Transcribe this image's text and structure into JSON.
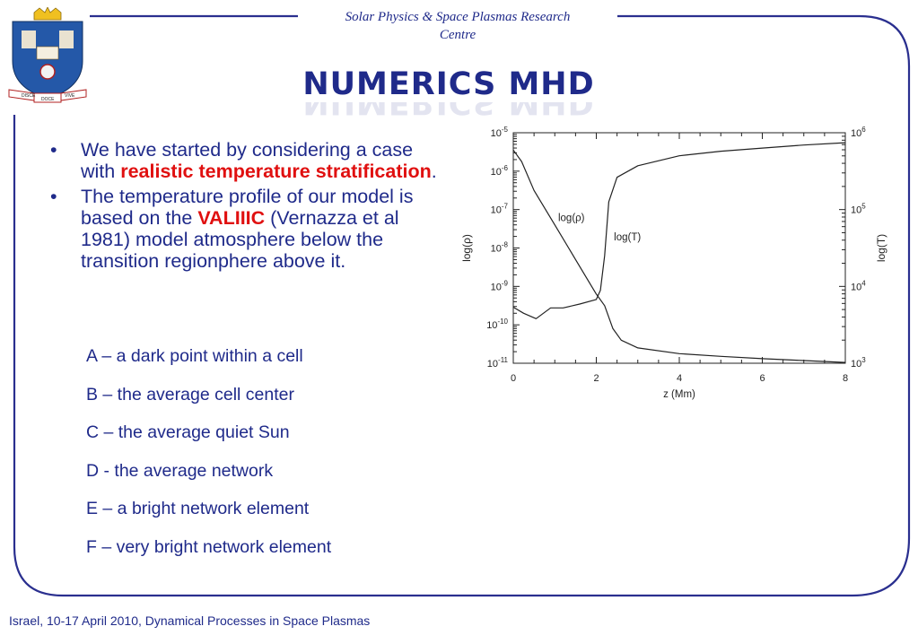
{
  "header": {
    "line1": "Solar Physics & Space Plasmas Research",
    "line2": "Centre"
  },
  "title": "NUMERICS MHD",
  "bullets": [
    {
      "pre": "We have started by considering a case with ",
      "highlight": "realistic temperature stratification",
      "post": "."
    },
    {
      "pre": "The temperature profile of our model is based on the ",
      "highlight": "VALIIIC",
      "post": " (Vernazza et al 1981) model atmosphere below the transition regionphere above it."
    }
  ],
  "bullet_glyph": "•",
  "cases": [
    "A – a dark point within a cell",
    "B – the average cell center",
    "C – the average quiet Sun",
    "D - the average network",
    "E – a bright network element",
    "F – very bright network element"
  ],
  "footer": "Israel, 10-17 April 2010, Dynamical Processes in Space Plasmas",
  "crest": {
    "icon": "university-crest-icon",
    "motto_left": "DISCE",
    "motto_mid": "DOCE",
    "motto_right": "VIVE"
  },
  "colors": {
    "text": "#1f2a8a",
    "highlight": "#e01010",
    "frame": "#2a2f8f"
  },
  "chart_data": {
    "type": "line",
    "xlabel": "z (Mm)",
    "ylabel_left": "log(ρ)",
    "ylabel_right": "log(T)",
    "xlim": [
      0,
      8
    ],
    "x_ticks": [
      "0",
      "2",
      "4",
      "6",
      "8"
    ],
    "y_left_log_range": [
      -11,
      -5
    ],
    "y_left_ticks": [
      {
        "base": "10",
        "exp": "-5"
      },
      {
        "base": "10",
        "exp": "-6"
      },
      {
        "base": "10",
        "exp": "-7"
      },
      {
        "base": "10",
        "exp": "-8"
      },
      {
        "base": "10",
        "exp": "-9"
      },
      {
        "base": "10",
        "exp": "-10"
      },
      {
        "base": "10",
        "exp": "-11"
      }
    ],
    "y_right_log_range": [
      3,
      6
    ],
    "y_right_ticks": [
      {
        "base": "10",
        "exp": "6"
      },
      {
        "base": "10",
        "exp": "5"
      },
      {
        "base": "10",
        "exp": "4"
      },
      {
        "base": "10",
        "exp": "3"
      }
    ],
    "series": [
      {
        "name": "log(ρ)",
        "axis": "left",
        "x": [
          0,
          0.2,
          0.5,
          1.0,
          1.5,
          2.0,
          2.2,
          2.4,
          2.6,
          3.0,
          4.0,
          5.0,
          6.0,
          7.0,
          8.0
        ],
        "y": [
          -5.45,
          -5.75,
          -6.5,
          -7.4,
          -8.3,
          -9.2,
          -9.5,
          -10.1,
          -10.4,
          -10.6,
          -10.75,
          -10.82,
          -10.88,
          -10.93,
          -10.98
        ]
      },
      {
        "name": "log(T)",
        "axis": "right",
        "x": [
          0,
          0.25,
          0.55,
          0.9,
          1.2,
          1.6,
          2.0,
          2.1,
          2.2,
          2.3,
          2.5,
          3.0,
          4.0,
          5.0,
          6.0,
          7.0,
          8.0
        ],
        "y": [
          3.73,
          3.65,
          3.58,
          3.72,
          3.72,
          3.77,
          3.83,
          3.95,
          4.4,
          5.1,
          5.42,
          5.57,
          5.7,
          5.76,
          5.8,
          5.84,
          5.87
        ]
      }
    ],
    "annotations": [
      {
        "text": "log(ρ)",
        "x": 1.4,
        "y_left": -7.3
      },
      {
        "text": "log(T)",
        "x": 2.75,
        "y_left": -7.8
      }
    ]
  }
}
